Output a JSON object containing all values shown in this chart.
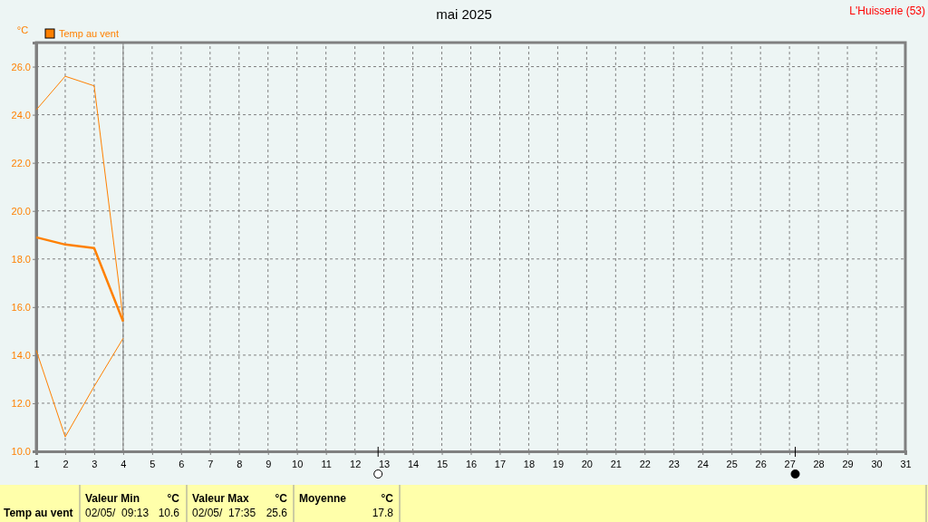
{
  "chart_data": {
    "type": "line",
    "title": "mai 2025",
    "ylabel": "°C",
    "x": [
      1,
      2,
      3,
      4
    ],
    "series": [
      {
        "color": "#ff8000",
        "values": [
          24.2,
          25.6,
          25.2,
          15.5
        ]
      },
      {
        "name": "Temp au vent",
        "color": "#ff8000",
        "values": [
          18.9,
          18.6,
          18.45,
          15.4
        ]
      },
      {
        "color": "#ff8000",
        "values": [
          14.2,
          10.6,
          12.7,
          14.7
        ]
      }
    ],
    "xlim": [
      1,
      31
    ],
    "xticks": [
      1,
      2,
      3,
      4,
      5,
      6,
      7,
      8,
      9,
      10,
      11,
      12,
      13,
      14,
      15,
      16,
      17,
      18,
      19,
      20,
      21,
      22,
      23,
      24,
      25,
      26,
      27,
      28,
      29,
      30,
      31
    ],
    "ylim": [
      10,
      27
    ],
    "yticks": [
      {
        "value": 10,
        "label": "10.0"
      },
      {
        "value": 12,
        "label": "12.0"
      },
      {
        "value": 14,
        "label": "14.0"
      },
      {
        "value": 16,
        "label": "16.0"
      },
      {
        "value": 18,
        "label": "18.0"
      },
      {
        "value": 20,
        "label": "20.0"
      },
      {
        "value": 22,
        "label": "22.0"
      },
      {
        "value": 24,
        "label": "24.0"
      },
      {
        "value": 26,
        "label": "26.0"
      }
    ],
    "grid": true,
    "legend": "top left",
    "line_style": "solid",
    "marker": "none",
    "ref_lines": [
      {
        "axis": "x",
        "value": 4,
        "color": "#808080"
      }
    ],
    "annotations": [
      "L'Huisserie (53)",
      "Temp au vent",
      "Valeur Min",
      "°C",
      "02/05/  09:13",
      "10.6",
      "Valeur Max",
      "°C",
      "02/05/  17:35",
      "25.6",
      "Moyenne",
      "°C",
      "17.8"
    ]
  }
}
